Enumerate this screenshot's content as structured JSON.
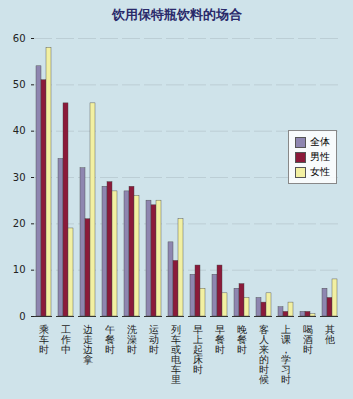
{
  "chart_data": {
    "type": "bar",
    "title": "饮用保特瓶饮料的场合",
    "categories": [
      "乘车时",
      "工作中",
      "边走边拿",
      "午餐时",
      "洗澡时",
      "运动时",
      "列车或电车里",
      "早上起床时",
      "早餐时",
      "晚餐时",
      "客人来的时候",
      "上课，学习时",
      "喝酒时",
      "其他"
    ],
    "series": [
      {
        "name": "全体",
        "color": "#8e86b0",
        "values": [
          54,
          34,
          32,
          28,
          27,
          25,
          16,
          9,
          9,
          6,
          4,
          2,
          1,
          6
        ]
      },
      {
        "name": "男性",
        "color": "#8b1a3a",
        "values": [
          51,
          46,
          21,
          29,
          28,
          24,
          12,
          11,
          11,
          7,
          3,
          1,
          1,
          4
        ]
      },
      {
        "name": "女性",
        "color": "#f2f0a2",
        "values": [
          58,
          19,
          46,
          27,
          26,
          25,
          21,
          6,
          5,
          4,
          5,
          3,
          0.5,
          8
        ]
      }
    ],
    "ylim": [
      0,
      60
    ],
    "yticks": [
      0,
      10,
      20,
      30,
      40,
      50,
      60
    ],
    "grid": true,
    "legend": "right"
  }
}
